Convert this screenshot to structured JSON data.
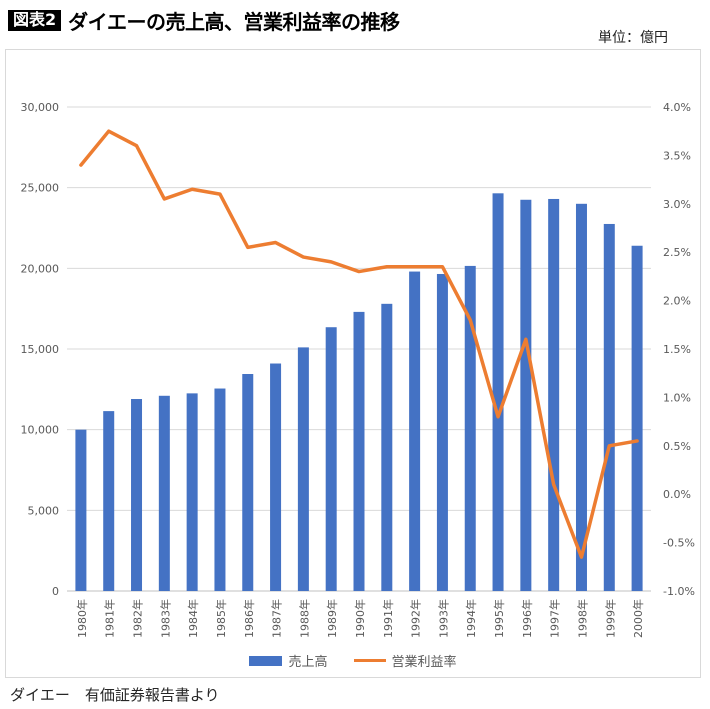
{
  "header": {
    "badge": "図表2",
    "title": "ダイエーの売上高、営業利益率の推移",
    "unit": "単位：億円"
  },
  "legend": {
    "bar_label": "売上高",
    "line_label": "営業利益率"
  },
  "caption": "ダイエー　有価証券報告書より",
  "colors": {
    "bar": "#4472C4",
    "line": "#ED7D31",
    "grid": "#D9D9D9",
    "zero_axis": "#C0C0C0",
    "tick_text": "#595959"
  },
  "chart_data": {
    "type": "bar",
    "subtype": "bar+line combo, dual axis",
    "title": "ダイエーの売上高、営業利益率の推移",
    "unit": "億円",
    "categories": [
      "1980年",
      "1981年",
      "1982年",
      "1983年",
      "1984年",
      "1985年",
      "1986年",
      "1987年",
      "1988年",
      "1989年",
      "1990年",
      "1991年",
      "1992年",
      "1993年",
      "1994年",
      "1995年",
      "1996年",
      "1997年",
      "1998年",
      "1999年",
      "2000年"
    ],
    "series": [
      {
        "name": "売上高",
        "type": "bar",
        "axis": "left",
        "values": [
          10000,
          11150,
          11900,
          12100,
          12250,
          12550,
          13450,
          14100,
          15100,
          16350,
          17300,
          17800,
          19800,
          19650,
          20150,
          24650,
          24250,
          24300,
          24000,
          22750,
          21400
        ]
      },
      {
        "name": "営業利益率",
        "type": "line",
        "axis": "right",
        "values": [
          3.4,
          3.75,
          3.6,
          3.05,
          3.15,
          3.1,
          2.55,
          2.6,
          2.45,
          2.4,
          2.3,
          2.35,
          2.35,
          2.35,
          1.8,
          0.8,
          1.6,
          0.1,
          -0.65,
          0.5,
          0.55
        ]
      }
    ],
    "left_axis": {
      "min": 0,
      "max": 30000,
      "step": 5000,
      "tick_labels": [
        "0",
        "5,000",
        "10,000",
        "15,000",
        "20,000",
        "25,000",
        "30,000"
      ]
    },
    "right_axis": {
      "min": -1.0,
      "max": 4.0,
      "step": 0.5,
      "tick_labels": [
        "-1.0%",
        "-0.5%",
        "0.0%",
        "0.5%",
        "1.0%",
        "1.5%",
        "2.0%",
        "2.5%",
        "3.0%",
        "3.5%",
        "4.0%"
      ]
    },
    "grid": true,
    "legend_position": "bottom"
  }
}
